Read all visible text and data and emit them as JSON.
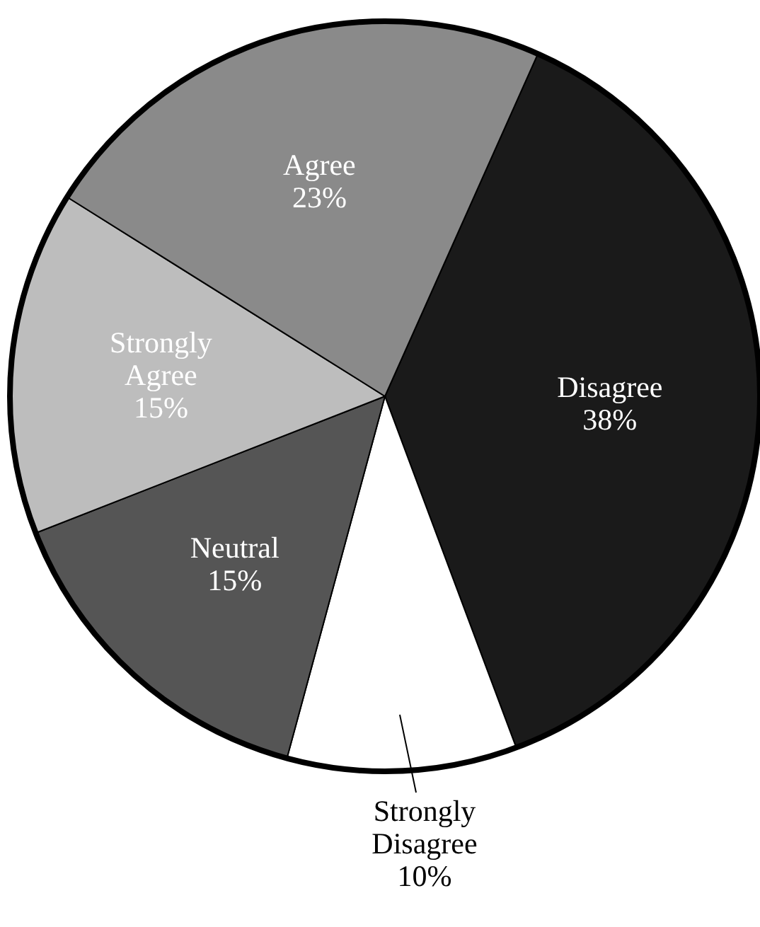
{
  "chart_data": {
    "type": "pie",
    "categories": [
      "Disagree",
      "Strongly Disagree",
      "Neutral",
      "Strongly Agree",
      "Agree"
    ],
    "values": [
      38,
      10,
      15,
      15,
      23
    ],
    "value_labels": [
      "38%",
      "10%",
      "15%",
      "15%",
      "23%"
    ],
    "colors": [
      "#1a1a1a",
      "#ffffff",
      "#555555",
      "#bdbdbd",
      "#8a8a8a"
    ]
  }
}
